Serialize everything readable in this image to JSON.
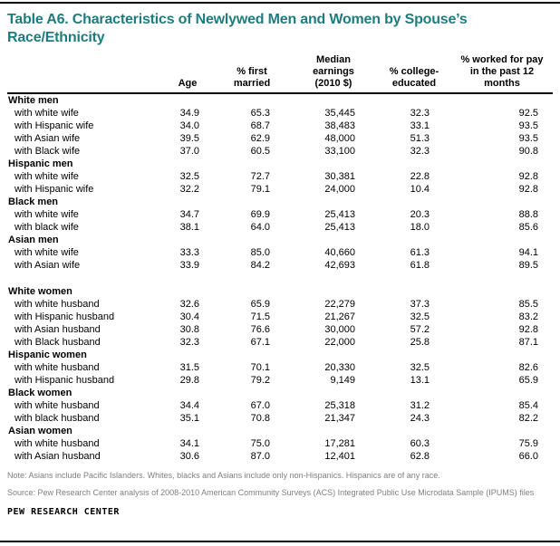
{
  "title": "Table A6. Characteristics of Newlywed Men and Women by Spouse’s Race/Ethnicity",
  "columns": [
    "Age",
    "% first\nmarried",
    "Median\nearnings\n(2010 $)",
    "% college-\neducated",
    "% worked for pay\nin the past 12\nmonths"
  ],
  "groups": [
    {
      "label": "White men",
      "spacer_before": false,
      "rows": [
        {
          "label": "with white wife",
          "values": [
            "34.9",
            "65.3",
            "35,445",
            "32.3",
            "92.5"
          ]
        },
        {
          "label": "with Hispanic wife",
          "values": [
            "34.0",
            "68.7",
            "38,483",
            "33.1",
            "93.5"
          ]
        },
        {
          "label": "with Asian wife",
          "values": [
            "39.5",
            "62.9",
            "48,000",
            "51.3",
            "93.5"
          ]
        },
        {
          "label": "with Black wife",
          "values": [
            "37.0",
            "60.5",
            "33,100",
            "32.3",
            "90.8"
          ]
        }
      ]
    },
    {
      "label": "Hispanic men",
      "spacer_before": false,
      "rows": [
        {
          "label": "with white wife",
          "values": [
            "32.5",
            "72.7",
            "30,381",
            "22.8",
            "92.8"
          ]
        },
        {
          "label": "with Hispanic wife",
          "values": [
            "32.2",
            "79.1",
            "24,000",
            "10.4",
            "92.8"
          ]
        }
      ]
    },
    {
      "label": "Black men",
      "spacer_before": false,
      "rows": [
        {
          "label": "with white wife",
          "values": [
            "34.7",
            "69.9",
            "25,413",
            "20.3",
            "88.8"
          ]
        },
        {
          "label": "with black wife",
          "values": [
            "38.1",
            "64.0",
            "25,413",
            "18.0",
            "85.6"
          ]
        }
      ]
    },
    {
      "label": "Asian men",
      "spacer_before": false,
      "rows": [
        {
          "label": "with white wife",
          "values": [
            "33.3",
            "85.0",
            "40,660",
            "61.3",
            "94.1"
          ]
        },
        {
          "label": "with Asian wife",
          "values": [
            "33.9",
            "84.2",
            "42,693",
            "61.8",
            "89.5"
          ]
        }
      ]
    },
    {
      "label": "White women",
      "spacer_before": true,
      "rows": [
        {
          "label": "with white husband",
          "values": [
            "32.6",
            "65.9",
            "22,279",
            "37.3",
            "85.5"
          ]
        },
        {
          "label": "with Hispanic husband",
          "values": [
            "30.4",
            "71.5",
            "21,267",
            "32.5",
            "83.2"
          ]
        },
        {
          "label": "with Asian husband",
          "values": [
            "30.8",
            "76.6",
            "30,000",
            "57.2",
            "92.8"
          ]
        },
        {
          "label": "with Black husband",
          "values": [
            "32.3",
            "67.1",
            "22,000",
            "25.8",
            "87.1"
          ]
        }
      ]
    },
    {
      "label": "Hispanic women",
      "spacer_before": false,
      "rows": [
        {
          "label": "with white husband",
          "values": [
            "31.5",
            "70.1",
            "20,330",
            "32.5",
            "82.6"
          ]
        },
        {
          "label": "with Hispanic husband",
          "values": [
            "29.8",
            "79.2",
            "9,149",
            "13.1",
            "65.9"
          ]
        }
      ]
    },
    {
      "label": "Black women",
      "spacer_before": false,
      "rows": [
        {
          "label": "with white husband",
          "values": [
            "34.4",
            "67.0",
            "25,318",
            "31.2",
            "85.4"
          ]
        },
        {
          "label": "with black husband",
          "values": [
            "35.1",
            "70.8",
            "21,347",
            "24.3",
            "82.2"
          ]
        }
      ]
    },
    {
      "label": "Asian women",
      "spacer_before": false,
      "rows": [
        {
          "label": "with white husband",
          "values": [
            "34.1",
            "75.0",
            "17,281",
            "60.3",
            "75.9"
          ]
        },
        {
          "label": "with Asian husband",
          "values": [
            "30.6",
            "87.0",
            "12,401",
            "62.8",
            "66.0"
          ]
        }
      ]
    }
  ],
  "note": "Note: Asians include Pacific Islanders. Whites, blacks and Asians include only non-Hispanics. Hispanics are of any race.",
  "source": "Source: Pew Research Center analysis of 2008-2010 American Community Surveys (ACS) Integrated Public Use Microdata Sample (IPUMS) files",
  "brand": "PEW RESEARCH CENTER",
  "colors": {
    "title_teal": "#1E7C7F",
    "rule_black": "#000000",
    "footnote_gray": "#7f7f7f"
  }
}
